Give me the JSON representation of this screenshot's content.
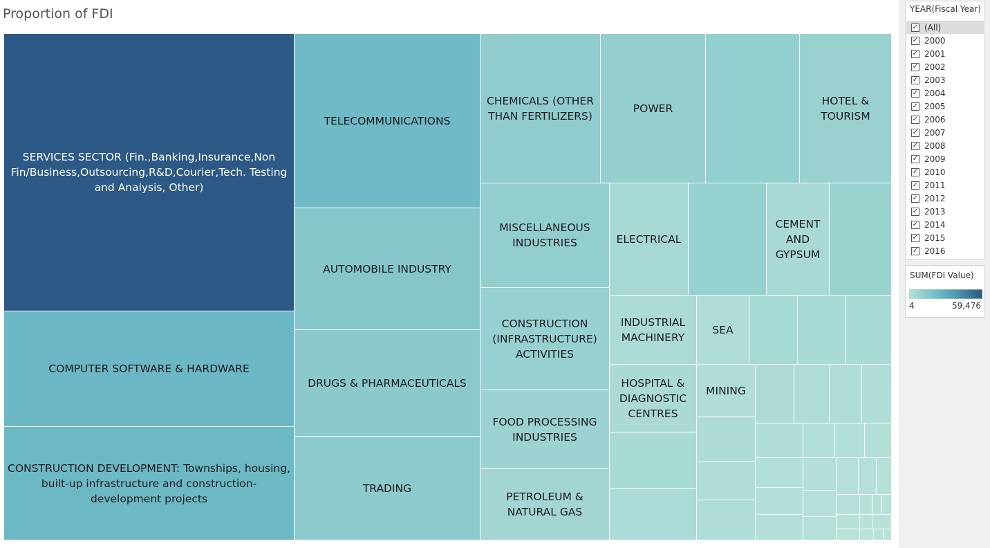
{
  "chart_data": {
    "type": "treemap",
    "title": "Proportion of FDI",
    "measure": "SUM(FDI Value)",
    "color_scale": {
      "min": 4,
      "max": 59476,
      "min_color": "#b7e1d8",
      "max_color": "#2c5985"
    },
    "labeled_tiles": [
      {
        "label": "SERVICES SECTOR (Fin.,Banking,Insurance,Non Fin/Business,Outsourcing,R&D,Courier,Tech. Testing and Analysis, Other)",
        "value": 59476
      },
      {
        "label": "COMPUTER SOFTWARE & HARDWARE",
        "value": 24700
      },
      {
        "label": "CONSTRUCTION DEVELOPMENT: Townships, housing, built-up infrastructure and construction-development projects",
        "value": 24100
      },
      {
        "label": "TELECOMMUNICATIONS",
        "value": 23300
      },
      {
        "label": "AUTOMOBILE INDUSTRY",
        "value": 16200
      },
      {
        "label": "DRUGS & PHARMACEUTICALS",
        "value": 14200
      },
      {
        "label": "TRADING",
        "value": 13900
      },
      {
        "label": "CHEMICALS (OTHER THAN FERTILIZERS)",
        "value": 12500
      },
      {
        "label": "POWER",
        "value": 11200
      },
      {
        "label": "HOTEL & TOURISM",
        "value": 9800
      },
      {
        "label": "MISCELLANEOUS INDUSTRIES",
        "value": 11500
      },
      {
        "label": "CONSTRUCTION (INFRASTRUCTURE) ACTIVITIES",
        "value": 10400
      },
      {
        "label": "FOOD PROCESSING INDUSTRIES",
        "value": 8700
      },
      {
        "label": "PETROLEUM & NATURAL GAS",
        "value": 6900
      },
      {
        "label": "ELECTRICAL",
        "value": 5600
      },
      {
        "label": "CEMENT AND GYPSUM",
        "value": 4500
      },
      {
        "label": "INDUSTRIAL MACHINERY",
        "value": 3600
      },
      {
        "label": "SEA",
        "value": 2600
      },
      {
        "label": "HOSPITAL & DIAGNOSTIC CENTRES",
        "value": 3900
      },
      {
        "label": "MINING",
        "value": 2300
      }
    ]
  },
  "filter": {
    "title": "YEAR(Fiscal Year)",
    "items": [
      "(All)",
      "2000",
      "2001",
      "2002",
      "2003",
      "2004",
      "2005",
      "2006",
      "2007",
      "2008",
      "2009",
      "2010",
      "2011",
      "2012",
      "2013",
      "2014",
      "2015",
      "2016"
    ],
    "checkmark": "✓"
  },
  "legend": {
    "title": "SUM(FDI Value)",
    "min_label": "4",
    "max_label": "59,476"
  }
}
